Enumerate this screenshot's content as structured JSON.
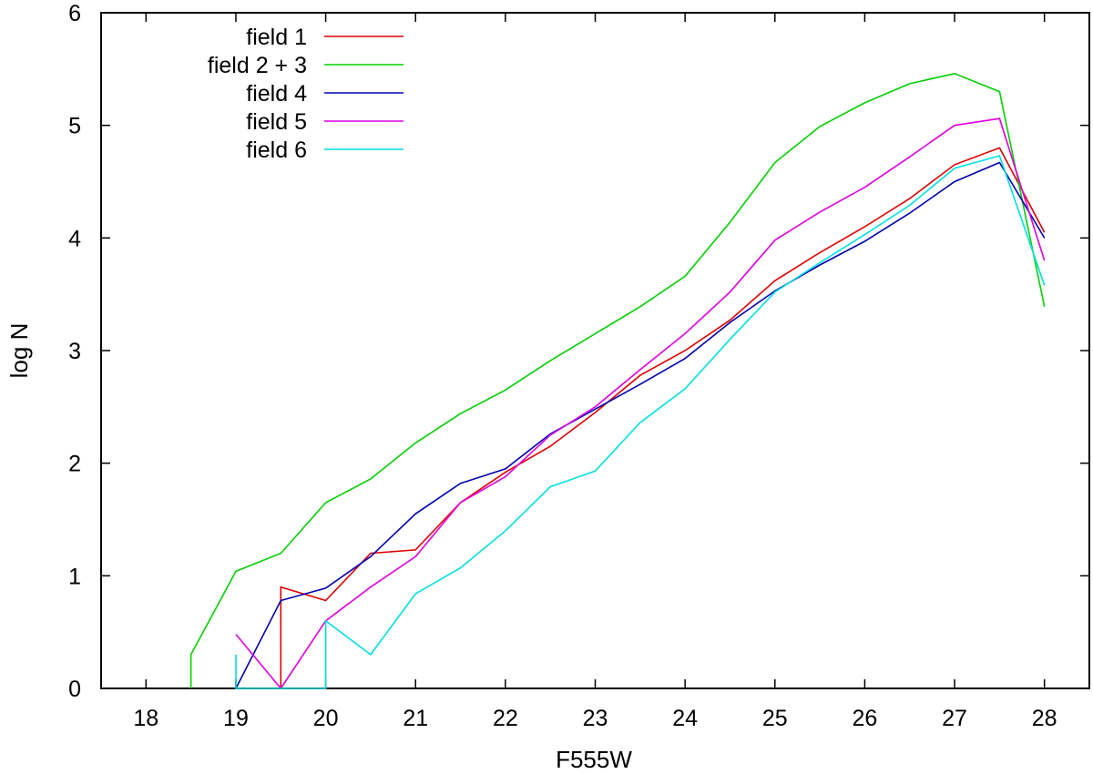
{
  "chart_data": {
    "type": "line",
    "title": "",
    "xlabel": "F555W",
    "ylabel": "log N",
    "xlim": [
      17.5,
      28.5
    ],
    "ylim": [
      0,
      6
    ],
    "grid": false,
    "legend_position": "top-left",
    "x_ticks": [
      18,
      19,
      20,
      21,
      22,
      23,
      24,
      25,
      26,
      27,
      28
    ],
    "y_ticks": [
      0,
      1,
      2,
      3,
      4,
      5,
      6
    ],
    "series": [
      {
        "name": "field 1",
        "color": "#e00000",
        "points": [
          [
            19.5,
            0
          ],
          [
            19.5,
            0.9
          ],
          [
            20,
            0.78
          ],
          [
            20.5,
            1.2
          ],
          [
            21,
            1.23
          ],
          [
            21.5,
            1.65
          ],
          [
            22,
            1.92
          ],
          [
            22.5,
            2.15
          ],
          [
            23,
            2.45
          ],
          [
            23.5,
            2.78
          ],
          [
            24,
            3.0
          ],
          [
            24.5,
            3.27
          ],
          [
            25,
            3.62
          ],
          [
            25.5,
            3.87
          ],
          [
            26,
            4.1
          ],
          [
            26.5,
            4.35
          ],
          [
            27,
            4.65
          ],
          [
            27.5,
            4.8
          ],
          [
            28,
            4.05
          ]
        ]
      },
      {
        "name": "field 2 + 3",
        "color": "#00d000",
        "points": [
          [
            18.5,
            0
          ],
          [
            18.5,
            0.3
          ],
          [
            19,
            1.04
          ],
          [
            19.5,
            1.2
          ],
          [
            20,
            1.65
          ],
          [
            20.5,
            1.86
          ],
          [
            21,
            2.18
          ],
          [
            21.5,
            2.44
          ],
          [
            22,
            2.65
          ],
          [
            22.5,
            2.91
          ],
          [
            23,
            3.15
          ],
          [
            23.5,
            3.39
          ],
          [
            24,
            3.66
          ],
          [
            24.5,
            4.14
          ],
          [
            25,
            4.67
          ],
          [
            25.5,
            4.99
          ],
          [
            26,
            5.2
          ],
          [
            26.5,
            5.37
          ],
          [
            27,
            5.46
          ],
          [
            27.5,
            5.3
          ],
          [
            28,
            3.39
          ]
        ]
      },
      {
        "name": "field 4",
        "color": "#0000b0",
        "points": [
          [
            19,
            0
          ],
          [
            19.5,
            0.78
          ],
          [
            20,
            0.89
          ],
          [
            20.5,
            1.17
          ],
          [
            21,
            1.55
          ],
          [
            21.5,
            1.82
          ],
          [
            22,
            1.95
          ],
          [
            22.5,
            2.26
          ],
          [
            23,
            2.48
          ],
          [
            23.5,
            2.7
          ],
          [
            24,
            2.93
          ],
          [
            24.5,
            3.25
          ],
          [
            25,
            3.53
          ],
          [
            25.5,
            3.76
          ],
          [
            26,
            3.97
          ],
          [
            26.5,
            4.22
          ],
          [
            27,
            4.5
          ],
          [
            27.5,
            4.67
          ],
          [
            28,
            4.0
          ]
        ]
      },
      {
        "name": "field 5",
        "color": "#e000e0",
        "points": [
          [
            19,
            0.48
          ],
          [
            19.5,
            0
          ],
          [
            20,
            0.6
          ],
          [
            20.5,
            0.9
          ],
          [
            21,
            1.17
          ],
          [
            21.5,
            1.65
          ],
          [
            22,
            1.88
          ],
          [
            22.5,
            2.25
          ],
          [
            23,
            2.5
          ],
          [
            23.5,
            2.83
          ],
          [
            24,
            3.15
          ],
          [
            24.5,
            3.52
          ],
          [
            25,
            3.98
          ],
          [
            25.5,
            4.23
          ],
          [
            26,
            4.45
          ],
          [
            26.5,
            4.72
          ],
          [
            27,
            5.0
          ],
          [
            27.5,
            5.06
          ],
          [
            28,
            3.8
          ]
        ]
      },
      {
        "name": "field 6",
        "color": "#00e0e0",
        "points": [
          [
            19,
            0
          ],
          [
            19,
            0.3
          ],
          [
            19,
            0
          ],
          [
            20,
            0
          ],
          [
            20,
            0.6
          ],
          [
            20.5,
            0.3
          ],
          [
            21,
            0.84
          ],
          [
            21.5,
            1.07
          ],
          [
            22,
            1.4
          ],
          [
            22.5,
            1.79
          ],
          [
            23,
            1.93
          ],
          [
            23.5,
            2.36
          ],
          [
            24,
            2.66
          ],
          [
            24.5,
            3.1
          ],
          [
            25,
            3.52
          ],
          [
            25.5,
            3.78
          ],
          [
            26,
            4.03
          ],
          [
            26.5,
            4.29
          ],
          [
            27,
            4.62
          ],
          [
            27.5,
            4.73
          ],
          [
            28,
            3.58
          ]
        ]
      }
    ]
  }
}
